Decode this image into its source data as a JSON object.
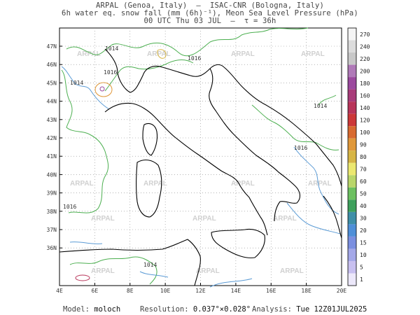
{
  "header": {
    "line1": "ARPAL (Genoa, Italy)  —  ISAC-CNR (Bologna, Italy)",
    "line2": "6h water eq. snow fall (mm (6h)⁻¹), Meon Sea Level Pressure (hPa)",
    "line3": "00 UTC Thu 03 JUL  —  τ = 36h"
  },
  "map": {
    "lat_labels": [
      "47N",
      "46N",
      "45N",
      "44N",
      "43N",
      "42N",
      "41N",
      "40N",
      "39N",
      "38N",
      "37N",
      "36N"
    ],
    "lon_labels": [
      "4E",
      "6E",
      "8E",
      "10E",
      "12E",
      "14E",
      "16E",
      "18E",
      "20E"
    ],
    "watermark": "ARPAL",
    "isobar_labels": [
      "1014",
      "1016",
      "1014",
      "1016",
      "1014",
      "1016",
      "1016",
      "1014"
    ]
  },
  "colorbar": {
    "labels": [
      "270",
      "240",
      "220",
      "200",
      "180",
      "160",
      "140",
      "120",
      "100",
      "90",
      "80",
      "70",
      "60",
      "50",
      "40",
      "30",
      "20",
      "15",
      "10",
      "5",
      "1"
    ],
    "colors": [
      "#f4f4f4",
      "#dcdcdc",
      "#c8c8c8",
      "#b07ab8",
      "#9b4a9e",
      "#a83c7a",
      "#b8355a",
      "#cc3838",
      "#d86a30",
      "#e0983a",
      "#d7b545",
      "#ece870",
      "#b9d66a",
      "#6cc060",
      "#3ea05c",
      "#3f8fa8",
      "#4f8fd8",
      "#7b8fe0",
      "#a4a8e8",
      "#c8c0f0",
      "#ece8fa"
    ]
  },
  "footer": {
    "model_label": "Model:",
    "model_value": "moloch",
    "res_label": "Resolution:",
    "res_value": "0.037°×0.028°",
    "analysis_label": "Analysis:",
    "analysis_value": "Tue 12Z01JUL2025"
  }
}
